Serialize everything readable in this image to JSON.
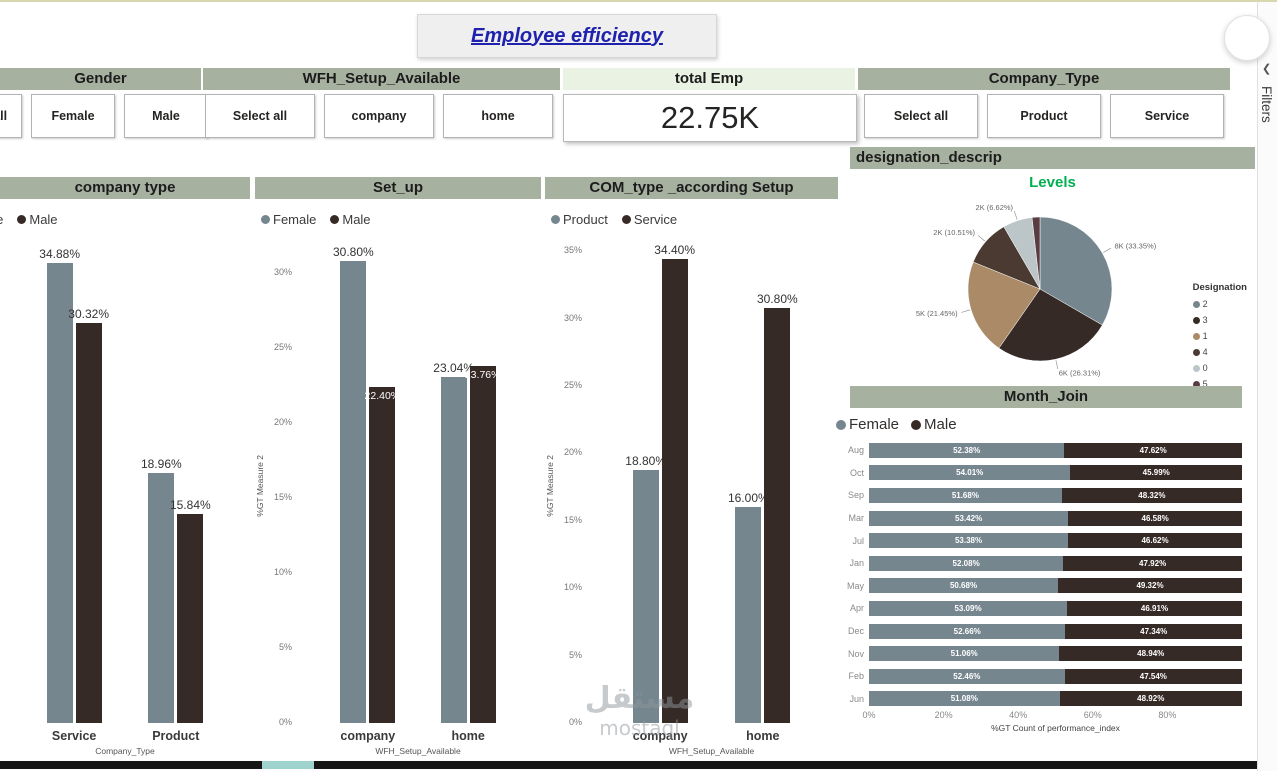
{
  "page": {
    "title": "Employee efficiency",
    "filters_pane": {
      "label": "Filters",
      "collapse_icon": "❮"
    },
    "watermark": {
      "line1": "مستقل",
      "line2": "mostaql"
    }
  },
  "slicers": [
    {
      "id": "gender",
      "header": "Gender",
      "options": [
        "Select all",
        "Female",
        "Male"
      ]
    },
    {
      "id": "wfh",
      "header": "WFH_Setup_Available",
      "options": [
        "Select all",
        "company",
        "home"
      ]
    },
    {
      "id": "company_type",
      "header": "Company_Type",
      "options": [
        "Select all",
        "Product",
        "Service"
      ]
    }
  ],
  "kpi": {
    "header": "total Emp",
    "value": "22.75K"
  },
  "colors": {
    "female": "#76868f",
    "male": "#362a26",
    "product": "#76868f",
    "service": "#362a26",
    "header_bg": "#a7b1a0",
    "kpi_header_bg": "#e9f2e3",
    "levels_green": "#00b050"
  },
  "chart_data": [
    {
      "id": "company_type_chart",
      "type": "bar",
      "title": "company type",
      "categories": [
        "Service",
        "Product"
      ],
      "series": [
        {
          "name": "Female",
          "color_key": "female",
          "values": [
            34.88,
            18.96
          ],
          "labels_inside": false
        },
        {
          "name": "Male",
          "color_key": "male",
          "values": [
            30.32,
            15.84
          ],
          "labels_inside": false
        }
      ],
      "xlabel": "Company_Type",
      "ylabel": null,
      "ylim": [
        0,
        37
      ],
      "yticks": [],
      "clip_left": true
    },
    {
      "id": "setup_chart",
      "type": "bar",
      "title": "Set_up",
      "categories": [
        "company",
        "home"
      ],
      "series": [
        {
          "name": "Female",
          "color_key": "female",
          "values": [
            30.8,
            23.04
          ],
          "labels_inside": false
        },
        {
          "name": "Male",
          "color_key": "male",
          "values": [
            22.4,
            23.76
          ],
          "labels_inside": true
        }
      ],
      "xlabel": "WFH_Setup_Available",
      "ylabel": "%GT Measure 2",
      "ylim": [
        0,
        32.5
      ],
      "yticks": [
        "0%",
        "5%",
        "10%",
        "15%",
        "20%",
        "25%",
        "30%"
      ]
    },
    {
      "id": "com_setup_chart",
      "type": "bar",
      "title": "COM_type _according Setup",
      "categories": [
        "company",
        "home"
      ],
      "series": [
        {
          "name": "Product",
          "color_key": "product",
          "values": [
            18.8,
            16.0
          ],
          "labels_inside": false
        },
        {
          "name": "Service",
          "color_key": "service",
          "values": [
            34.4,
            30.8
          ],
          "labels_inside": false
        }
      ],
      "xlabel": "WFH_Setup_Available",
      "ylabel": "%GT Measure 2",
      "ylim": [
        0,
        36.2
      ],
      "yticks": [
        "0%",
        "5%",
        "10%",
        "15%",
        "20%",
        "25%",
        "30%",
        "35%"
      ]
    },
    {
      "id": "designation_pie",
      "type": "pie",
      "title": "designation_descrip",
      "subtitle": "Levels",
      "legend_title": "Designation",
      "slices": [
        {
          "name": "2",
          "value": 33.35,
          "label": "8K (33.35%)",
          "color": "#76868f"
        },
        {
          "name": "3",
          "value": 26.31,
          "label": "6K (26.31%)",
          "color": "#362a26"
        },
        {
          "name": "1",
          "value": 21.45,
          "label": "5K (21.45%)",
          "color": "#ab8a68"
        },
        {
          "name": "4",
          "value": 10.51,
          "label": "2K (10.51%)",
          "color": "#4a3a31"
        },
        {
          "name": "0",
          "value": 6.62,
          "label": "2K (6.62%)",
          "color": "#bcc5c7"
        },
        {
          "name": "5",
          "value": 1.76,
          "label": null,
          "color": "#583c42"
        }
      ]
    },
    {
      "id": "month_join",
      "type": "stacked_bar_h",
      "title": "Month_Join",
      "categories": [
        "Aug",
        "Oct",
        "Sep",
        "Mar",
        "Jul",
        "Jan",
        "May",
        "Apr",
        "Dec",
        "Nov",
        "Feb",
        "Jun"
      ],
      "series": [
        {
          "name": "Female",
          "color_key": "female",
          "values": [
            52.38,
            54.01,
            51.68,
            53.42,
            53.38,
            52.08,
            50.68,
            53.09,
            52.66,
            51.06,
            52.46,
            51.08
          ]
        },
        {
          "name": "Male",
          "color_key": "male",
          "values": [
            47.62,
            45.99,
            48.32,
            46.58,
            46.62,
            47.92,
            49.32,
            46.91,
            47.34,
            48.94,
            47.54,
            48.92
          ]
        }
      ],
      "xticks": [
        "0%",
        "20%",
        "40%",
        "60%",
        "80%"
      ],
      "xlabel": "%GT Count of performance_index"
    }
  ]
}
